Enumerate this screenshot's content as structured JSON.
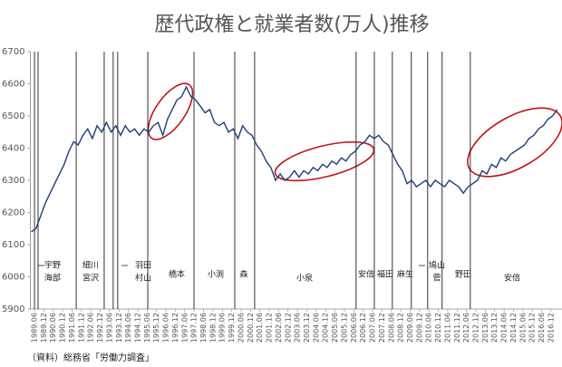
{
  "chart_data": {
    "type": "line",
    "title": "歴代政権と就業者数(万人)推移",
    "source": "（資料）総務省「労働力調査」",
    "xlim": [
      1989.2,
      2017.5
    ],
    "ylim": [
      5900,
      6700
    ],
    "yticks": [
      5900,
      6000,
      6100,
      6200,
      6300,
      6400,
      6500,
      6600,
      6700
    ],
    "xticks": [
      {
        "value": 1989.417,
        "label": "1989.06"
      },
      {
        "value": 1989.917,
        "label": "1989.12"
      },
      {
        "value": 1990.417,
        "label": "1990.06"
      },
      {
        "value": 1990.917,
        "label": "1990.12"
      },
      {
        "value": 1991.417,
        "label": "1991.06"
      },
      {
        "value": 1991.917,
        "label": "1991.12"
      },
      {
        "value": 1992.417,
        "label": "1992.06"
      },
      {
        "value": 1992.917,
        "label": "1992.12"
      },
      {
        "value": 1993.417,
        "label": "1993.06"
      },
      {
        "value": 1993.917,
        "label": "1993.12"
      },
      {
        "value": 1994.417,
        "label": "1994.06"
      },
      {
        "value": 1994.917,
        "label": "1994.12"
      },
      {
        "value": 1995.417,
        "label": "1995.06"
      },
      {
        "value": 1995.917,
        "label": "1995.12"
      },
      {
        "value": 1996.417,
        "label": "1996.06"
      },
      {
        "value": 1996.917,
        "label": "1996.12"
      },
      {
        "value": 1997.417,
        "label": "1997.06"
      },
      {
        "value": 1997.917,
        "label": "1997.12"
      },
      {
        "value": 1998.417,
        "label": "1998.06"
      },
      {
        "value": 1998.917,
        "label": "1998.12"
      },
      {
        "value": 1999.417,
        "label": "1999.06"
      },
      {
        "value": 1999.917,
        "label": "1999.12"
      },
      {
        "value": 2000.417,
        "label": "2000.06"
      },
      {
        "value": 2000.917,
        "label": "2000.12"
      },
      {
        "value": 2001.417,
        "label": "2001.06"
      },
      {
        "value": 2001.917,
        "label": "2001.12"
      },
      {
        "value": 2002.417,
        "label": "2002.06"
      },
      {
        "value": 2002.917,
        "label": "2002.12"
      },
      {
        "value": 2003.417,
        "label": "2003.06"
      },
      {
        "value": 2003.917,
        "label": "2003.12"
      },
      {
        "value": 2004.417,
        "label": "2004.06"
      },
      {
        "value": 2004.917,
        "label": "2004.12"
      },
      {
        "value": 2005.417,
        "label": "2005.06"
      },
      {
        "value": 2005.917,
        "label": "2005.12"
      },
      {
        "value": 2006.417,
        "label": "2006.06"
      },
      {
        "value": 2006.917,
        "label": "2006.12"
      },
      {
        "value": 2007.417,
        "label": "2007.06"
      },
      {
        "value": 2007.917,
        "label": "2007.12"
      },
      {
        "value": 2008.417,
        "label": "2008.06"
      },
      {
        "value": 2008.917,
        "label": "2008.12"
      },
      {
        "value": 2009.417,
        "label": "2009.06"
      },
      {
        "value": 2009.917,
        "label": "2009.12"
      },
      {
        "value": 2010.417,
        "label": "2010.06"
      },
      {
        "value": 2010.917,
        "label": "2010.12"
      },
      {
        "value": 2011.417,
        "label": "2011.06"
      },
      {
        "value": 2011.917,
        "label": "2011.12"
      },
      {
        "value": 2012.417,
        "label": "2012.06"
      },
      {
        "value": 2012.917,
        "label": "2012.12"
      },
      {
        "value": 2013.417,
        "label": "2013.06"
      },
      {
        "value": 2013.917,
        "label": "2013.12"
      },
      {
        "value": 2014.417,
        "label": "2014.06"
      },
      {
        "value": 2014.917,
        "label": "2014.12"
      },
      {
        "value": 2015.417,
        "label": "2015.06"
      },
      {
        "value": 2015.917,
        "label": "2015.12"
      },
      {
        "value": 2016.417,
        "label": "2016.06"
      },
      {
        "value": 2016.917,
        "label": "2016.12"
      }
    ],
    "color": "#1f3e78",
    "x": [
      1989.25,
      1989.5,
      1989.75,
      1990,
      1990.25,
      1990.5,
      1990.75,
      1991,
      1991.25,
      1991.5,
      1991.75,
      1992,
      1992.25,
      1992.5,
      1992.75,
      1993,
      1993.25,
      1993.5,
      1993.75,
      1994,
      1994.25,
      1994.5,
      1994.75,
      1995,
      1995.25,
      1995.5,
      1995.75,
      1996,
      1996.25,
      1996.5,
      1996.75,
      1997,
      1997.25,
      1997.5,
      1997.75,
      1998,
      1998.25,
      1998.5,
      1998.75,
      1999,
      1999.25,
      1999.5,
      1999.75,
      2000,
      2000.25,
      2000.5,
      2000.75,
      2001,
      2001.25,
      2001.5,
      2001.75,
      2002,
      2002.25,
      2002.5,
      2002.75,
      2003,
      2003.25,
      2003.5,
      2003.75,
      2004,
      2004.25,
      2004.5,
      2004.75,
      2005,
      2005.25,
      2005.5,
      2005.75,
      2006,
      2006.25,
      2006.5,
      2006.75,
      2007,
      2007.25,
      2007.5,
      2007.75,
      2008,
      2008.25,
      2008.5,
      2008.75,
      2009,
      2009.25,
      2009.5,
      2009.75,
      2010,
      2010.25,
      2010.5,
      2010.75,
      2011,
      2011.25,
      2011.5,
      2011.75,
      2012,
      2012.25,
      2012.5,
      2012.75,
      2013,
      2013.25,
      2013.5,
      2013.75,
      2014,
      2014.25,
      2014.5,
      2014.75,
      2015,
      2015.25,
      2015.5,
      2015.75,
      2016,
      2016.25,
      2016.5,
      2016.75,
      2017,
      2017.25
    ],
    "values": [
      6140,
      6150,
      6190,
      6230,
      6260,
      6290,
      6320,
      6350,
      6390,
      6420,
      6410,
      6440,
      6460,
      6430,
      6470,
      6450,
      6480,
      6450,
      6470,
      6440,
      6470,
      6450,
      6460,
      6440,
      6460,
      6450,
      6470,
      6480,
      6440,
      6490,
      6520,
      6550,
      6560,
      6590,
      6560,
      6550,
      6530,
      6510,
      6520,
      6480,
      6470,
      6480,
      6450,
      6460,
      6430,
      6470,
      6450,
      6440,
      6410,
      6390,
      6360,
      6340,
      6300,
      6320,
      6300,
      6310,
      6330,
      6310,
      6330,
      6320,
      6340,
      6330,
      6350,
      6340,
      6360,
      6350,
      6370,
      6360,
      6380,
      6390,
      6410,
      6420,
      6440,
      6430,
      6440,
      6420,
      6410,
      6380,
      6350,
      6330,
      6290,
      6300,
      6280,
      6290,
      6300,
      6280,
      6300,
      6290,
      6280,
      6300,
      6290,
      6280,
      6260,
      6280,
      6290,
      6300,
      6330,
      6320,
      6350,
      6340,
      6370,
      6360,
      6380,
      6390,
      6400,
      6410,
      6430,
      6440,
      6460,
      6470,
      6490,
      6500,
      6520
    ],
    "events": [
      1989.42,
      1989.61,
      1991.64,
      1993.13,
      1993.61,
      1993.85,
      1995.45,
      1997.91,
      2000.08,
      2001.14,
      2006.54,
      2007.51,
      2008.47,
      2009.48,
      2010.35,
      2011.12,
      2012.62
    ],
    "pm_labels": [
      [
        "宇野",
        "海部"
      ],
      [
        "細川",
        "宮沢"
      ],
      [
        "羽田",
        "村山"
      ],
      [
        "橋本"
      ],
      [
        "小渕"
      ],
      [
        "森"
      ],
      [
        "小泉"
      ],
      [
        "安倍"
      ],
      [
        "福田"
      ],
      [
        "麻生"
      ],
      [
        "鳩山",
        "菅"
      ],
      [
        "野田"
      ],
      [
        "安倍"
      ]
    ]
  }
}
